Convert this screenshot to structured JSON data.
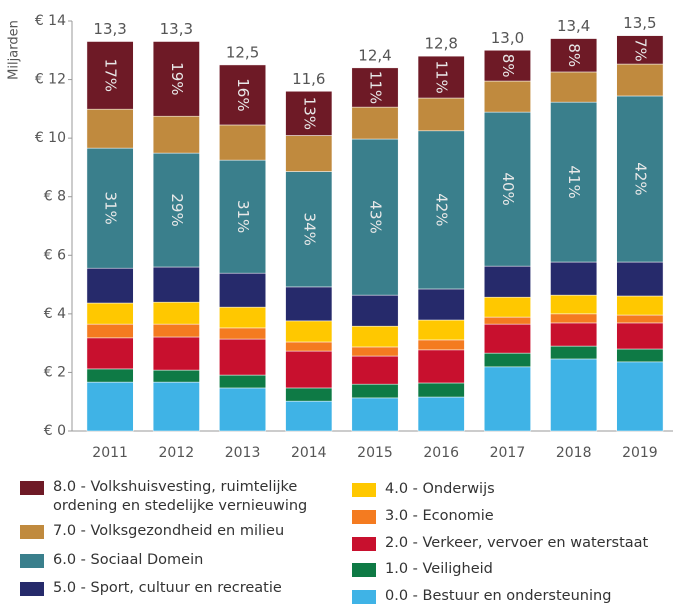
{
  "chart_data": {
    "type": "stacked-bar",
    "ylabel": "Miljarden",
    "categories": [
      "2011",
      "2012",
      "2013",
      "2014",
      "2015",
      "2016",
      "2017",
      "2018",
      "2019"
    ],
    "ylim": [
      0,
      14
    ],
    "yticks": [
      {
        "value": 0,
        "label": "€ 0"
      },
      {
        "value": 2,
        "label": "€ 2"
      },
      {
        "value": 4,
        "label": "€ 4"
      },
      {
        "value": 6,
        "label": "€ 6"
      },
      {
        "value": 8,
        "label": "€ 8"
      },
      {
        "value": 10,
        "label": "€ 10"
      },
      {
        "value": 12,
        "label": "€ 12"
      },
      {
        "value": 14,
        "label": "€ 14"
      }
    ],
    "totals": [
      13.3,
      13.3,
      12.5,
      11.6,
      12.4,
      12.8,
      13.0,
      13.4,
      13.5
    ],
    "total_labels": [
      "13,3",
      "13,3",
      "12,5",
      "11,6",
      "12,4",
      "12,8",
      "13,0",
      "13,4",
      "13,5"
    ],
    "series": [
      {
        "name": "0.0 - Bestuur en ondersteuning",
        "color": "#3fb3e6",
        "values": [
          1.67,
          1.67,
          1.47,
          1.02,
          1.13,
          1.16,
          2.19,
          2.46,
          2.36
        ]
      },
      {
        "name": "1.0 - Veiligheid",
        "color": "#0e7a45",
        "values": [
          0.45,
          0.41,
          0.44,
          0.45,
          0.47,
          0.48,
          0.47,
          0.44,
          0.44
        ]
      },
      {
        "name": "2.0 - Verkeer, vervoer en waterstaat",
        "color": "#c8102e",
        "values": [
          1.06,
          1.13,
          1.23,
          1.26,
          0.96,
          1.13,
          0.99,
          0.79,
          0.89
        ]
      },
      {
        "name": "3.0 - Economie",
        "color": "#f47b20",
        "values": [
          0.47,
          0.44,
          0.38,
          0.31,
          0.31,
          0.34,
          0.24,
          0.31,
          0.27
        ]
      },
      {
        "name": "4.0 - Onderwijs",
        "color": "#ffc800",
        "values": [
          0.72,
          0.75,
          0.71,
          0.72,
          0.71,
          0.68,
          0.68,
          0.64,
          0.65
        ]
      },
      {
        "name": "5.0 - Sport, cultuur en recreatie",
        "color": "#262a6b",
        "values": [
          1.19,
          1.2,
          1.16,
          1.16,
          1.06,
          1.06,
          1.06,
          1.13,
          1.16
        ]
      },
      {
        "name": "6.0 - Sociaal Domein",
        "color": "#3a7f8c",
        "values": [
          4.1,
          3.89,
          3.86,
          3.94,
          5.33,
          5.4,
          5.26,
          5.46,
          5.67
        ],
        "share_labels": [
          "31%",
          "29%",
          "31%",
          "34%",
          "43%",
          "42%",
          "40%",
          "41%",
          "42%"
        ]
      },
      {
        "name": "7.0 - Volksgezondheid en milieu",
        "color": "#c08a3e",
        "values": [
          1.33,
          1.26,
          1.2,
          1.23,
          1.09,
          1.12,
          1.06,
          1.03,
          1.09
        ]
      },
      {
        "name": "8.0 - Volkshuisvesting, ruimtelijke ordening en stedelijke vernieuwing",
        "color": "#6e1a26",
        "values": [
          2.31,
          2.55,
          2.05,
          1.51,
          1.34,
          1.43,
          1.05,
          1.14,
          0.97
        ],
        "share_labels": [
          "17%",
          "19%",
          "16%",
          "13%",
          "11%",
          "11%",
          "8%",
          "8%",
          "7%"
        ]
      }
    ]
  }
}
